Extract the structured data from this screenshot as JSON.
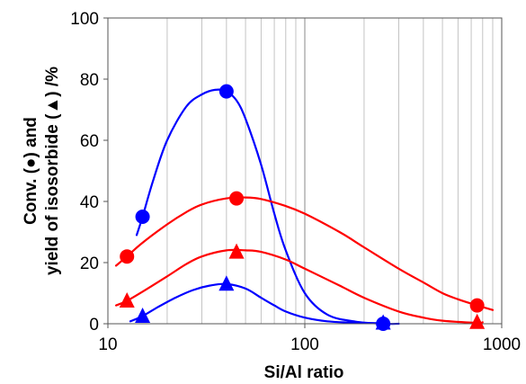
{
  "chart_data": {
    "type": "scatter",
    "xscale": "log",
    "xlim": [
      10,
      1000
    ],
    "ylim": [
      0,
      100
    ],
    "x_ticks": [
      10,
      100,
      1000
    ],
    "x_tick_labels": [
      "10",
      "100",
      "1000"
    ],
    "y_ticks": [
      0,
      20,
      40,
      60,
      80,
      100
    ],
    "y_tick_labels": [
      "0",
      "20",
      "40",
      "60",
      "80",
      "100"
    ],
    "xlabel": "Si/Al ratio",
    "ylabel_line1": "Conv. (●) and",
    "ylabel_line2": "yield of isosorbide (▲) /%",
    "grid": "vertical minor gridlines on log x-axis",
    "legend": "none",
    "series": [
      {
        "marker": "circle",
        "color": "#0000ff",
        "points": [
          [
            15,
            35
          ],
          [
            40,
            76
          ],
          [
            250,
            0
          ]
        ],
        "curve": [
          [
            14,
            29
          ],
          [
            15,
            35
          ],
          [
            17,
            47
          ],
          [
            20,
            60
          ],
          [
            25,
            71
          ],
          [
            30,
            75
          ],
          [
            35,
            76.5
          ],
          [
            40,
            76
          ],
          [
            45,
            73
          ],
          [
            50,
            67
          ],
          [
            60,
            52
          ],
          [
            70,
            36
          ],
          [
            80,
            24
          ],
          [
            100,
            10
          ],
          [
            130,
            3
          ],
          [
            180,
            0.7
          ],
          [
            250,
            0
          ],
          [
            300,
            0
          ]
        ]
      },
      {
        "marker": "circle",
        "color": "#ff0000",
        "points": [
          [
            12.5,
            22
          ],
          [
            45,
            41
          ],
          [
            750,
            6
          ]
        ],
        "curve": [
          [
            11,
            19
          ],
          [
            12.5,
            22
          ],
          [
            15,
            26.5
          ],
          [
            20,
            32.5
          ],
          [
            25,
            36.5
          ],
          [
            30,
            39
          ],
          [
            40,
            41
          ],
          [
            50,
            41.3
          ],
          [
            60,
            40.8
          ],
          [
            80,
            38.5
          ],
          [
            100,
            36
          ],
          [
            150,
            30
          ],
          [
            200,
            25
          ],
          [
            300,
            18
          ],
          [
            400,
            13.5
          ],
          [
            500,
            10
          ],
          [
            600,
            8
          ],
          [
            750,
            6
          ],
          [
            900,
            4.5
          ]
        ]
      },
      {
        "marker": "triangle",
        "color": "#ff0000",
        "points": [
          [
            12.5,
            7.5
          ],
          [
            45,
            23.5
          ],
          [
            750,
            0.5
          ]
        ],
        "curve": [
          [
            11,
            6
          ],
          [
            12.5,
            7.5
          ],
          [
            15,
            10.5
          ],
          [
            20,
            15.5
          ],
          [
            25,
            19.5
          ],
          [
            30,
            22
          ],
          [
            40,
            24
          ],
          [
            50,
            24
          ],
          [
            60,
            23.5
          ],
          [
            80,
            21
          ],
          [
            100,
            18
          ],
          [
            150,
            12.5
          ],
          [
            200,
            8.5
          ],
          [
            300,
            4
          ],
          [
            400,
            2
          ],
          [
            500,
            1
          ],
          [
            750,
            0.3
          ],
          [
            800,
            0.5
          ]
        ]
      },
      {
        "marker": "triangle",
        "color": "#0000ff",
        "points": [
          [
            15,
            2.5
          ],
          [
            40,
            13
          ],
          [
            250,
            0.3
          ]
        ],
        "curve": [
          [
            13,
            0.8
          ],
          [
            15,
            2.5
          ],
          [
            18,
            5.5
          ],
          [
            22,
            8.5
          ],
          [
            27,
            11
          ],
          [
            33,
            12.5
          ],
          [
            40,
            13
          ],
          [
            50,
            11.5
          ],
          [
            60,
            8.5
          ],
          [
            70,
            6
          ],
          [
            80,
            4
          ],
          [
            100,
            2
          ],
          [
            130,
            0.8
          ],
          [
            180,
            0.3
          ],
          [
            250,
            0.2
          ]
        ]
      }
    ]
  }
}
